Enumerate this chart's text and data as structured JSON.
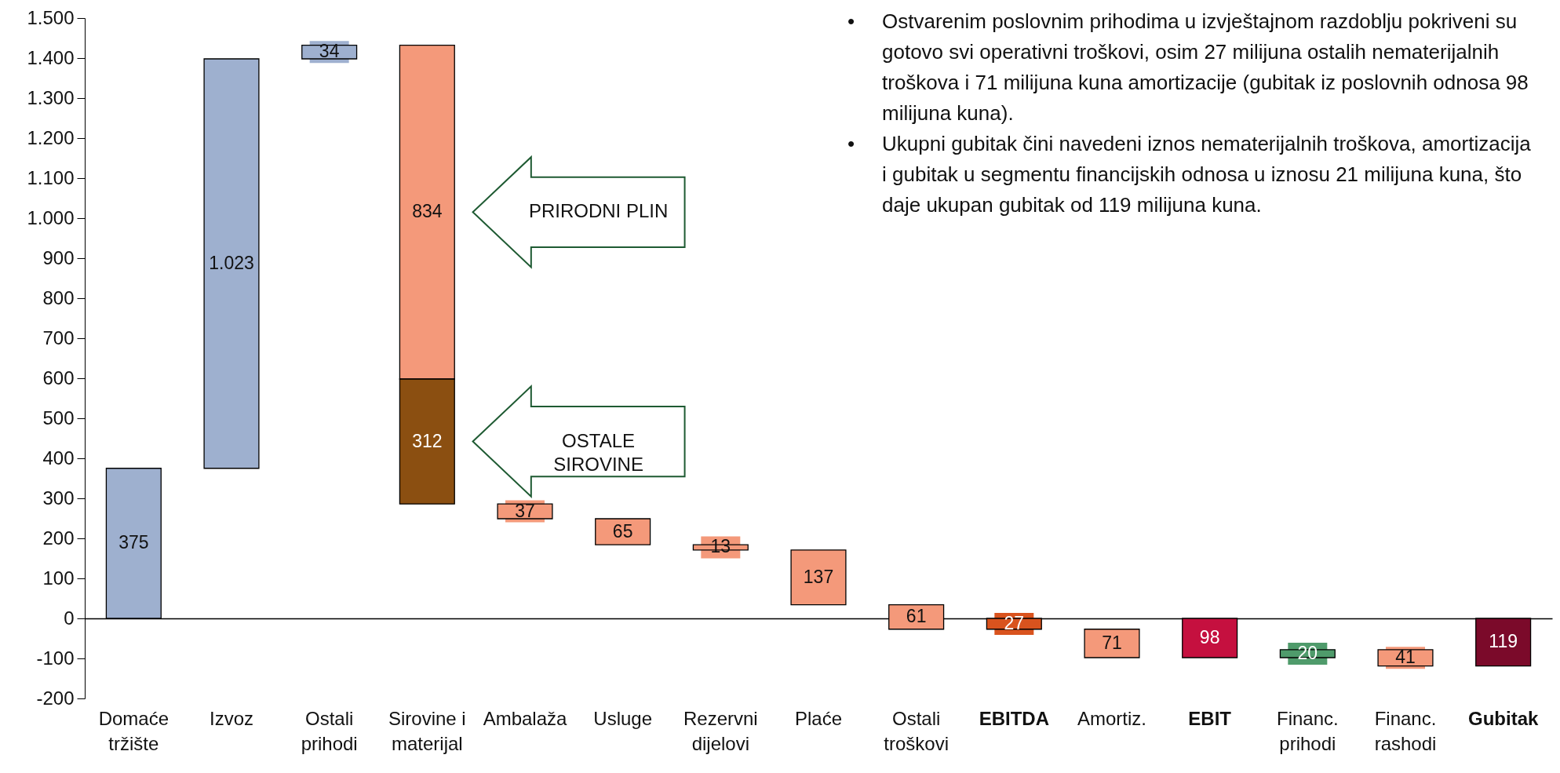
{
  "chart_data": {
    "type": "bar",
    "categories": [
      "Domaće tržište",
      "Izvoz",
      "Ostali prihodi",
      "Sirovine i materijal",
      "Ambalaža",
      "Usluge",
      "Rezervni dijelovi",
      "Plaće",
      "Ostali troškovi",
      "EBITDA",
      "Amortiz.",
      "EBIT",
      "Financ. prihodi",
      "Financ. rashodi",
      "Gubitak"
    ],
    "series": [
      {
        "values": [
          375,
          1023,
          34,
          834,
          37,
          65,
          13,
          137,
          61,
          27,
          71,
          98,
          20,
          41,
          119
        ],
        "base": [
          0,
          375,
          1398,
          598,
          249,
          184,
          171,
          34,
          -27,
          -27,
          -98,
          -98,
          -98,
          -119,
          -119
        ],
        "colors": [
          "#9eb0cf",
          "#9eb0cf",
          "#9eb0cf",
          "#f4997a",
          "#f4997a",
          "#f4997a",
          "#f4997a",
          "#f4997a",
          "#f4997a",
          "#d9531e",
          "#f4997a",
          "#c5103f",
          "#4f9b6b",
          "#f4997a",
          "#7b0a2a"
        ],
        "value_labels": [
          "375",
          "1.023",
          "34",
          "834",
          "37",
          "65",
          "13",
          "137",
          "61",
          "27",
          "71",
          "98",
          "20",
          "41",
          "119"
        ]
      },
      {
        "values": [
          null,
          null,
          null,
          312,
          null,
          null,
          null,
          null,
          null,
          null,
          null,
          null,
          null,
          null,
          null
        ],
        "base": [
          null,
          null,
          null,
          286,
          null,
          null,
          null,
          null,
          null,
          null,
          null,
          null,
          null,
          null,
          null
        ],
        "color": "#8b4f11",
        "value_labels": [
          null,
          null,
          null,
          "312",
          null,
          null,
          null,
          null,
          null,
          null,
          null,
          null,
          null,
          null,
          null
        ]
      }
    ],
    "ylim": [
      -200,
      1500
    ],
    "yticks": [
      -200,
      -100,
      0,
      100,
      200,
      300,
      400,
      500,
      600,
      700,
      800,
      900,
      {
        "value": 1000,
        "label": "1.000"
      },
      {
        "value": 1100,
        "label": "1.100"
      },
      {
        "value": 1200,
        "label": "1.200"
      },
      {
        "value": 1300,
        "label": "1.300"
      },
      {
        "value": 1400,
        "label": "1.400"
      },
      {
        "value": 1500,
        "label": "1.500"
      }
    ],
    "annotations": [
      "PRIRODNI PLIN",
      "OSTALE SIROVINE",
      "• Ostvarenim poslovnim prihodima u izvještajnom razdoblju pokriveni su gotovo svi operativni troškovi, osim 27 milijuna ostalih nematerijalnih troškova i 71 milijuna kuna amortizacije (gubitak iz poslovnih odnosa 98 milijuna kuna).",
      "• Ukupni gubitak čini navedeni iznos nematerijalnih troškova, amortizacija i gubitak u segmentu financijskih odnosa u iznosu 21 milijuna kuna, što daje ukupan gubitak od 119 milijuna kuna."
    ]
  }
}
